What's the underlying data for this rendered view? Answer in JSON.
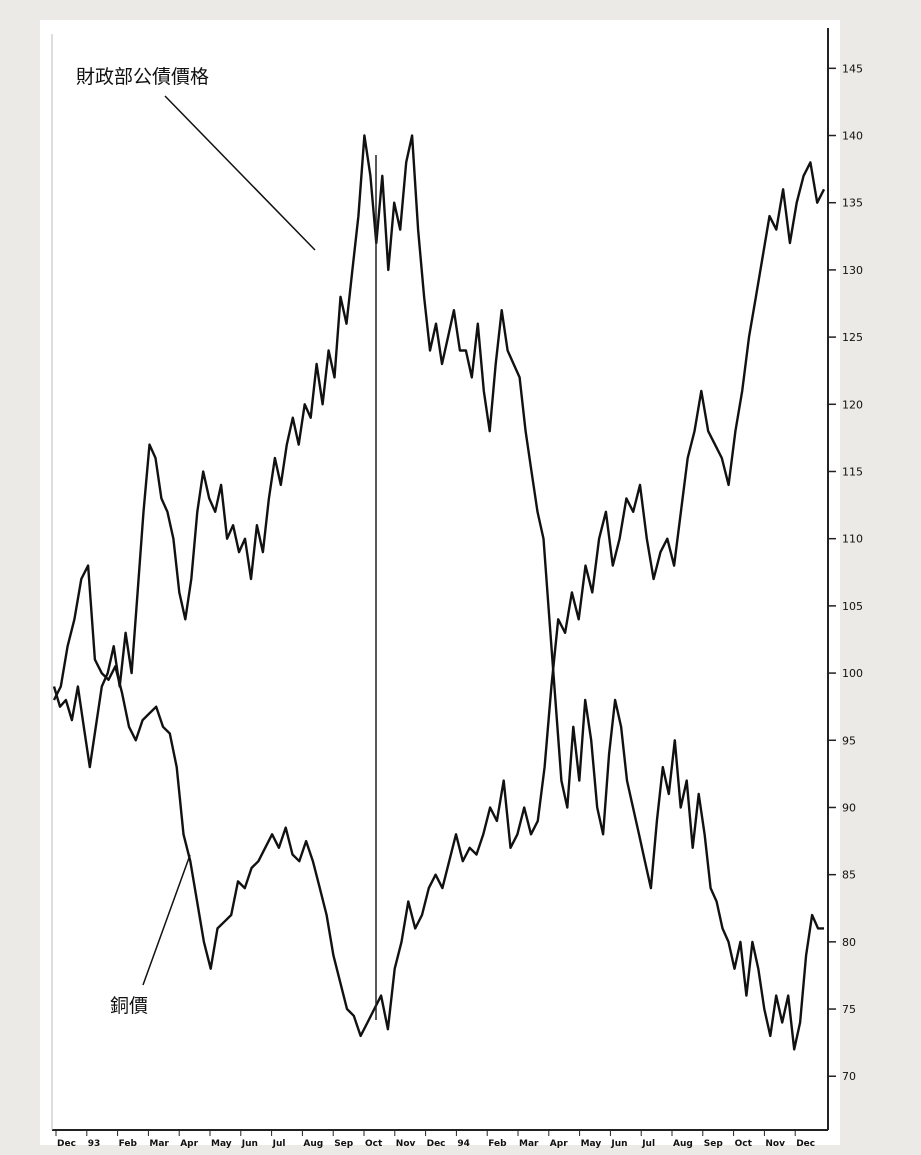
{
  "chart_data": {
    "type": "line",
    "title": "",
    "xlabel": "",
    "ylabel": "",
    "ylim": [
      66,
      148
    ],
    "yticks": [
      70,
      75,
      80,
      85,
      90,
      95,
      100,
      105,
      110,
      115,
      120,
      125,
      130,
      135,
      140,
      145
    ],
    "x_tick_labels": [
      "Dec",
      "93",
      "Feb",
      "Mar",
      "Apr",
      "May",
      "Jun",
      "Jul",
      "Aug",
      "Sep",
      "Oct",
      "Nov",
      "Dec",
      "94",
      "Feb",
      "Mar",
      "Apr",
      "May",
      "Jun",
      "Jul",
      "Aug",
      "Sep",
      "Oct",
      "Nov",
      "Dec"
    ],
    "annotations": {
      "bond": "財政部公債價格",
      "copper": "銅價"
    },
    "series": [
      {
        "name": "財政部公債價格",
        "values": [
          99,
          97.5,
          98,
          96.5,
          99,
          96,
          93,
          96,
          99,
          100,
          102,
          99,
          103,
          100,
          106,
          112,
          117,
          116,
          113,
          112,
          110,
          106,
          104,
          107,
          112,
          115,
          113,
          112,
          114,
          110,
          111,
          109,
          110,
          107,
          111,
          109,
          113,
          116,
          114,
          117,
          119,
          117,
          120,
          119,
          123,
          120,
          124,
          122,
          128,
          126,
          130,
          134,
          140,
          137,
          132,
          137,
          130,
          135,
          133,
          138,
          140,
          133,
          128,
          124,
          126,
          123,
          125,
          127,
          124,
          124,
          122,
          126,
          121,
          118,
          123,
          127,
          124,
          123,
          122,
          118,
          115,
          112,
          110,
          104,
          98,
          92,
          90,
          96,
          92,
          98,
          95,
          90,
          88,
          94,
          98,
          96,
          92,
          90,
          88,
          86,
          84,
          89,
          93,
          91,
          95,
          90,
          92,
          87,
          91,
          88,
          84,
          83,
          81,
          80,
          78,
          80,
          76,
          80,
          78,
          75,
          73,
          76,
          74,
          76,
          72,
          74,
          79,
          82,
          81,
          81
        ]
      },
      {
        "name": "銅價",
        "values": [
          98,
          99,
          102,
          104,
          107,
          108,
          101,
          100,
          99.5,
          100.5,
          98.5,
          96,
          95,
          96.5,
          97,
          97.5,
          96,
          95.5,
          93,
          88,
          86,
          83,
          80,
          78,
          81,
          81.5,
          82,
          84.5,
          84,
          85.5,
          86,
          87,
          88,
          87,
          88.5,
          86.5,
          86,
          87.5,
          86,
          84,
          82,
          79,
          77,
          75,
          74.5,
          73,
          74,
          75,
          76,
          73.5,
          78,
          80,
          83,
          81,
          82,
          84,
          85,
          84,
          86,
          88,
          86,
          87,
          86.5,
          88,
          90,
          89,
          92,
          87,
          88,
          90,
          88,
          89,
          93,
          99,
          104,
          103,
          106,
          104,
          108,
          106,
          110,
          112,
          108,
          110,
          113,
          112,
          114,
          110,
          107,
          109,
          110,
          108,
          112,
          116,
          118,
          121,
          118,
          117,
          116,
          114,
          118,
          121,
          125,
          128,
          131,
          134,
          133,
          136,
          132,
          135,
          137,
          138,
          135,
          136
        ]
      }
    ]
  }
}
